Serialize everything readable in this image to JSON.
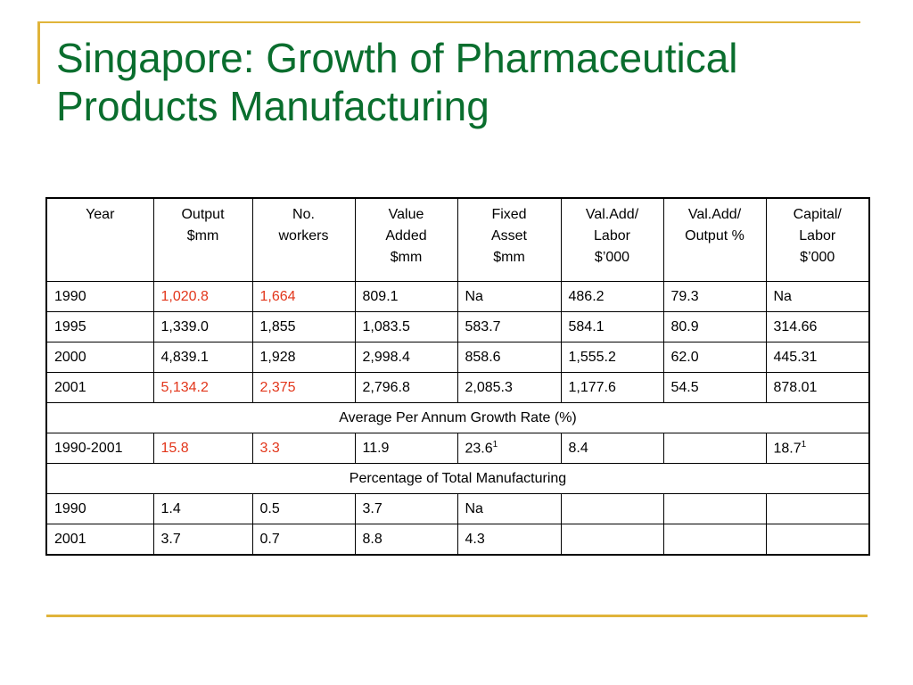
{
  "title": {
    "line1": "Singapore: Growth of Pharmaceutical",
    "line2": "Products Manufacturing"
  },
  "colors": {
    "title": "#0a6e2e",
    "accent_line": "#e0b43a",
    "highlight": "#e2361b"
  },
  "table": {
    "headers": [
      [
        "Year"
      ],
      [
        "Output",
        "$mm"
      ],
      [
        "No.",
        "workers"
      ],
      [
        "Value",
        "Added",
        "$mm"
      ],
      [
        "Fixed",
        "Asset",
        "$mm"
      ],
      [
        "Val.Add/",
        "Labor",
        "$’000"
      ],
      [
        "Val.Add/",
        "Output %"
      ],
      [
        "Capital/",
        "Labor",
        "$’000"
      ]
    ],
    "rows": [
      [
        "1990",
        "1,020.8",
        "1,664",
        "809.1",
        "Na",
        "486.2",
        "79.3",
        "Na"
      ],
      [
        "1995",
        "1,339.0",
        "1,855",
        "1,083.5",
        "583.7",
        "584.1",
        "80.9",
        "314.66"
      ],
      [
        "2000",
        "4,839.1",
        "1,928",
        "2,998.4",
        "858.6",
        "1,555.2",
        "62.0",
        "445.31"
      ],
      [
        "2001",
        "5,134.2",
        "2,375",
        "2,796.8",
        "2,085.3",
        "1,177.6",
        "54.5",
        "878.01"
      ]
    ],
    "section_growth": "Average Per Annum Growth Rate (%)",
    "growth_row": {
      "period": "1990-2001",
      "output": "15.8",
      "workers": "3.3",
      "value_added": "11.9",
      "fixed_asset": "23.6",
      "fixed_asset_note": "1",
      "va_labor": "8.4",
      "va_output": "",
      "capital_labor": "18.7",
      "capital_labor_note": "1"
    },
    "section_pct": "Percentage of Total Manufacturing",
    "pct_rows": [
      [
        "1990",
        "1.4",
        "0.5",
        "3.7",
        "Na",
        "",
        "",
        ""
      ],
      [
        "2001",
        "3.7",
        "0.7",
        "8.8",
        "4.3",
        "",
        "",
        ""
      ]
    ]
  }
}
